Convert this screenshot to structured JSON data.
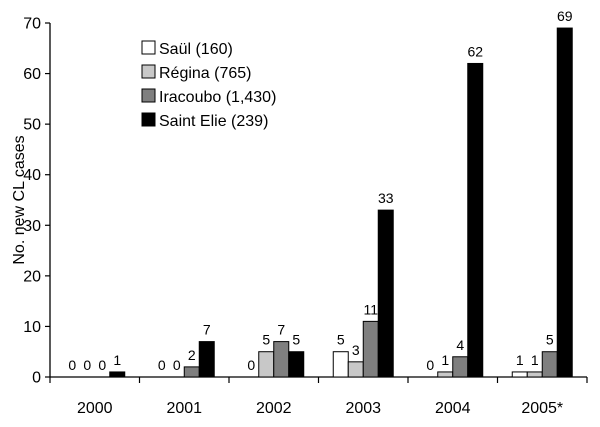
{
  "chart_data": {
    "type": "bar",
    "title": "",
    "xlabel": "",
    "ylabel": "No. new CL cases",
    "ylim": [
      0,
      70
    ],
    "yticks": [
      0,
      10,
      20,
      30,
      40,
      50,
      60,
      70
    ],
    "grid": false,
    "legend_position": "top-left",
    "categories": [
      "2000",
      "2001",
      "2002",
      "2003",
      "2004",
      "2005*"
    ],
    "series": [
      {
        "name": "Saül (160)",
        "color": "#ffffff",
        "values": [
          0,
          0,
          0,
          5,
          0,
          1
        ]
      },
      {
        "name": "Régina (765)",
        "color": "#c8c8c8",
        "values": [
          0,
          0,
          5,
          3,
          1,
          1
        ]
      },
      {
        "name": "Iracoubo (1,430)",
        "color": "#7f7f7f",
        "values": [
          0,
          2,
          7,
          11,
          4,
          5
        ]
      },
      {
        "name": "Saint Elie (239)",
        "color": "#000000",
        "values": [
          1,
          7,
          5,
          33,
          62,
          69
        ]
      }
    ],
    "data_labels": [
      [
        "0",
        "0",
        "0",
        "1"
      ],
      [
        "0",
        "0",
        "2",
        "7"
      ],
      [
        "0",
        "5",
        "7",
        "5"
      ],
      [
        "5",
        "3",
        "11",
        "33"
      ],
      [
        "0",
        "1",
        "4",
        "62"
      ],
      [
        "1",
        "1",
        "5",
        "69"
      ]
    ]
  }
}
